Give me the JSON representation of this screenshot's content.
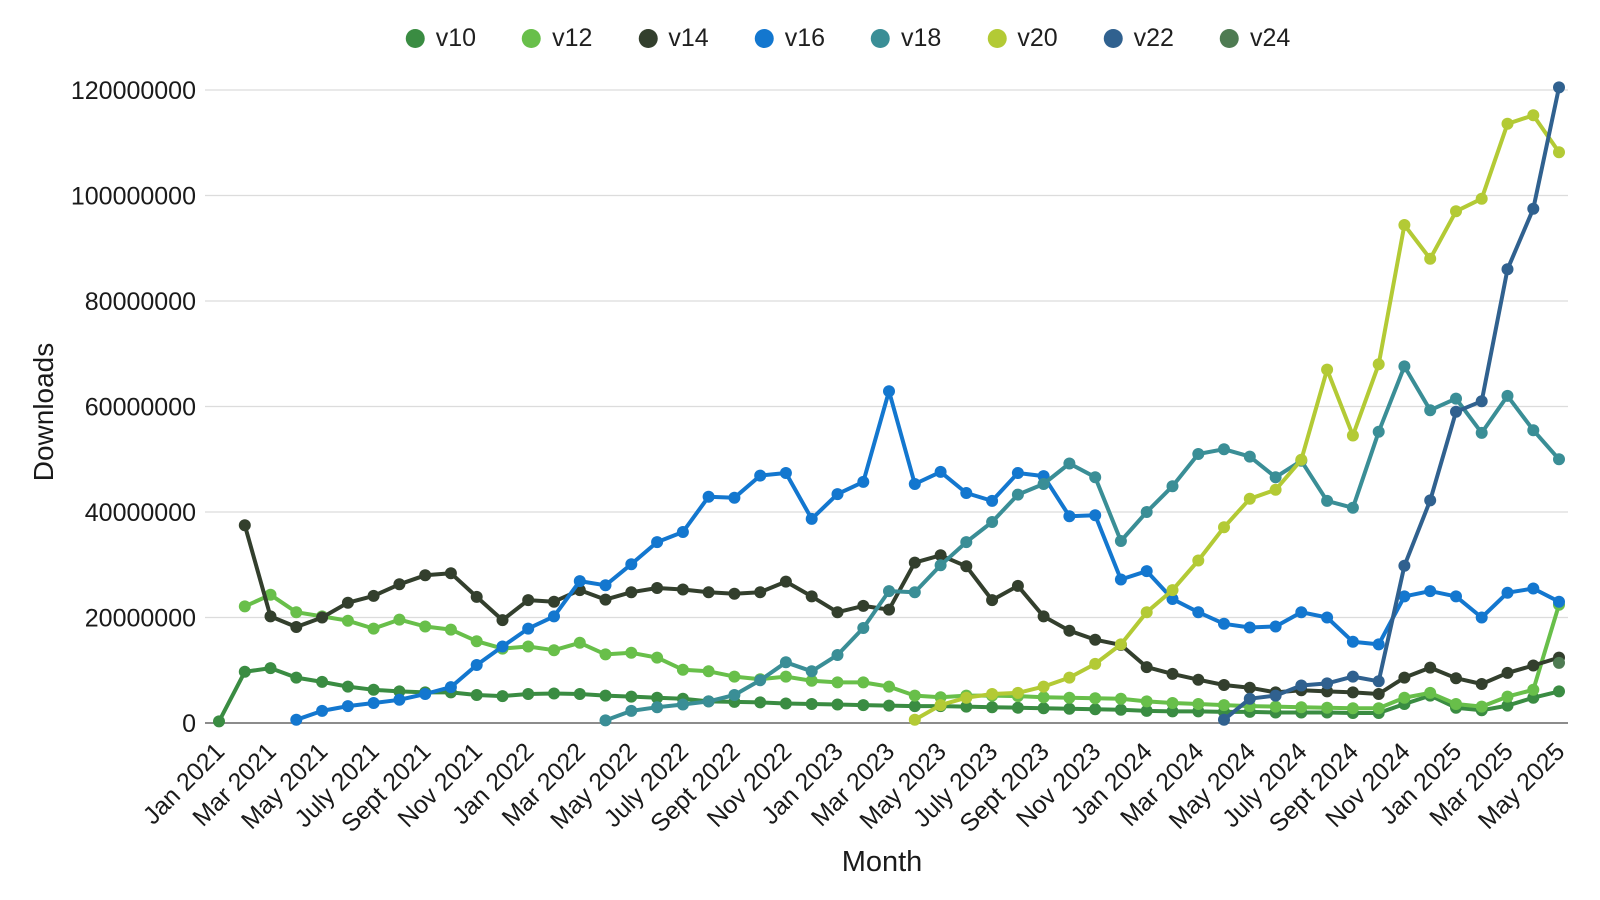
{
  "chart_data": {
    "type": "line",
    "title": "",
    "xlabel": "Month",
    "ylabel": "Downloads",
    "ylim": [
      0,
      120000000
    ],
    "yticks": [
      0,
      20000000,
      40000000,
      60000000,
      80000000,
      100000000,
      120000000
    ],
    "grid": "horizontal",
    "legend_position": "top",
    "x": [
      "Jan 2021",
      "Feb 2021",
      "Mar 2021",
      "Apr 2021",
      "May 2021",
      "June 2021",
      "July 2021",
      "Aug 2021",
      "Sept 2021",
      "Oct 2021",
      "Nov 2021",
      "Dec 2021",
      "Jan 2022",
      "Feb 2022",
      "Mar 2022",
      "Apr 2022",
      "May 2022",
      "June 2022",
      "July 2022",
      "Aug 2022",
      "Sept 2022",
      "Oct 2022",
      "Nov 2022",
      "Dec 2022",
      "Jan 2023",
      "Feb 2023",
      "Mar 2023",
      "Apr 2023",
      "May 2023",
      "June 2023",
      "July 2023",
      "Aug 2023",
      "Sept 2023",
      "Oct 2023",
      "Nov 2023",
      "Dec 2023",
      "Jan 2024",
      "Feb 2024",
      "Mar 2024",
      "Apr 2024",
      "May 2024",
      "June 2024",
      "July 2024",
      "Aug 2024",
      "Sept 2024",
      "Oct 2024",
      "Nov 2024",
      "Dec 2024",
      "Jan 2025",
      "Feb 2025",
      "Mar 2025",
      "Apr 2025",
      "May 2025"
    ],
    "x_tick_labels": [
      "Jan 2021",
      "Mar 2021",
      "May 2021",
      "July 2021",
      "Sept 2021",
      "Nov 2021",
      "Jan 2022",
      "Mar 2022",
      "May 2022",
      "July 2022",
      "Sept 2022",
      "Nov 2022",
      "Jan 2023",
      "Mar 2023",
      "May 2023",
      "July 2023",
      "Sept 2023",
      "Nov 2023",
      "Jan 2024",
      "Mar 2024",
      "May 2024",
      "July 2024",
      "Sept 2024",
      "Nov 2024",
      "Jan 2025",
      "Mar 2025",
      "May 2025"
    ],
    "series": [
      {
        "name": "v10",
        "color": "#3a8c42",
        "values": [
          300000,
          9700000,
          10400000,
          8600000,
          7800000,
          6900000,
          6300000,
          6000000,
          5800000,
          5800000,
          5300000,
          5100000,
          5500000,
          5600000,
          5500000,
          5200000,
          5000000,
          4800000,
          4600000,
          4100000,
          4000000,
          3900000,
          3700000,
          3600000,
          3500000,
          3400000,
          3300000,
          3200000,
          3200000,
          3100000,
          3000000,
          2900000,
          2800000,
          2700000,
          2600000,
          2500000,
          2300000,
          2200000,
          2200000,
          2100000,
          2100000,
          2000000,
          2000000,
          2000000,
          1900000,
          1900000,
          3600000,
          5200000,
          2900000,
          2400000,
          3300000,
          4800000,
          6000000
        ]
      },
      {
        "name": "v12",
        "color": "#68bf4a",
        "values": [
          null,
          22100000,
          24300000,
          21000000,
          20200000,
          19400000,
          17900000,
          19600000,
          18300000,
          17700000,
          15500000,
          14100000,
          14500000,
          13800000,
          15200000,
          13000000,
          13300000,
          12400000,
          10100000,
          9800000,
          8800000,
          8300000,
          8800000,
          8000000,
          7700000,
          7700000,
          6900000,
          5200000,
          4900000,
          5200000,
          5200000,
          5100000,
          4900000,
          4800000,
          4700000,
          4600000,
          4100000,
          3800000,
          3600000,
          3400000,
          3200000,
          3100000,
          3000000,
          2900000,
          2800000,
          2800000,
          4800000,
          5700000,
          3600000,
          3100000,
          5000000,
          6300000,
          22400000
        ]
      },
      {
        "name": "v14",
        "color": "#333f2d",
        "values": [
          null,
          37500000,
          20200000,
          18200000,
          20000000,
          22800000,
          24100000,
          26300000,
          28000000,
          28400000,
          23900000,
          19500000,
          23300000,
          23000000,
          25200000,
          23400000,
          24800000,
          25600000,
          25300000,
          24800000,
          24500000,
          24800000,
          26800000,
          24000000,
          21000000,
          22200000,
          21500000,
          30400000,
          31800000,
          29700000,
          23300000,
          26000000,
          20200000,
          17500000,
          15800000,
          14800000,
          10600000,
          9300000,
          8200000,
          7200000,
          6700000,
          5800000,
          6200000,
          6000000,
          5800000,
          5500000,
          8600000,
          10500000,
          8500000,
          7400000,
          9500000,
          10900000,
          12400000
        ]
      },
      {
        "name": "v16",
        "color": "#1377cf",
        "values": [
          null,
          null,
          null,
          600000,
          2300000,
          3200000,
          3800000,
          4400000,
          5500000,
          6800000,
          11000000,
          14500000,
          17900000,
          20200000,
          26900000,
          26100000,
          30100000,
          34300000,
          36200000,
          42900000,
          42700000,
          46900000,
          47400000,
          38700000,
          43400000,
          45700000,
          62900000,
          45300000,
          47600000,
          43600000,
          42100000,
          47400000,
          46800000,
          39200000,
          39400000,
          27200000,
          28800000,
          23500000,
          21000000,
          18800000,
          18100000,
          18300000,
          21000000,
          20000000,
          15400000,
          14900000,
          24000000,
          25000000,
          24000000,
          20000000,
          24700000,
          25500000,
          23000000
        ]
      },
      {
        "name": "v18",
        "color": "#3a8e96",
        "values": [
          null,
          null,
          null,
          null,
          null,
          null,
          null,
          null,
          null,
          null,
          null,
          null,
          null,
          null,
          null,
          500000,
          2300000,
          3000000,
          3500000,
          4100000,
          5300000,
          8100000,
          11500000,
          9800000,
          12900000,
          18000000,
          25000000,
          24800000,
          29900000,
          34300000,
          38100000,
          43300000,
          45300000,
          49200000,
          46600000,
          34500000,
          40000000,
          44900000,
          51000000,
          51900000,
          50500000,
          46600000,
          49700000,
          42100000,
          40800000,
          55200000,
          67600000,
          59300000,
          61500000,
          55000000,
          62000000,
          55500000,
          50000000
        ]
      },
      {
        "name": "v20",
        "color": "#b3ca35",
        "values": [
          null,
          null,
          null,
          null,
          null,
          null,
          null,
          null,
          null,
          null,
          null,
          null,
          null,
          null,
          null,
          null,
          null,
          null,
          null,
          null,
          null,
          null,
          null,
          null,
          null,
          null,
          null,
          600000,
          3400000,
          4800000,
          5500000,
          5700000,
          6900000,
          8600000,
          11200000,
          14900000,
          21000000,
          25200000,
          30800000,
          37100000,
          42500000,
          44200000,
          49900000,
          67000000,
          54500000,
          68000000,
          94400000,
          88000000,
          97000000,
          99400000,
          113600000,
          115200000,
          108200000
        ]
      },
      {
        "name": "v22",
        "color": "#30618f",
        "values": [
          null,
          null,
          null,
          null,
          null,
          null,
          null,
          null,
          null,
          null,
          null,
          null,
          null,
          null,
          null,
          null,
          null,
          null,
          null,
          null,
          null,
          null,
          null,
          null,
          null,
          null,
          null,
          null,
          null,
          null,
          null,
          null,
          null,
          null,
          null,
          null,
          null,
          null,
          null,
          600000,
          4600000,
          5200000,
          7100000,
          7500000,
          8800000,
          7900000,
          29800000,
          42200000,
          59000000,
          61000000,
          86000000,
          97500000,
          120500000
        ]
      },
      {
        "name": "v24",
        "color": "#4e7b52",
        "values": [
          null,
          null,
          null,
          null,
          null,
          null,
          null,
          null,
          null,
          null,
          null,
          null,
          null,
          null,
          null,
          null,
          null,
          null,
          null,
          null,
          null,
          null,
          null,
          null,
          null,
          null,
          null,
          null,
          null,
          null,
          null,
          null,
          null,
          null,
          null,
          null,
          null,
          null,
          null,
          null,
          null,
          null,
          null,
          null,
          null,
          null,
          null,
          null,
          null,
          null,
          null,
          null,
          11400000
        ]
      }
    ]
  }
}
